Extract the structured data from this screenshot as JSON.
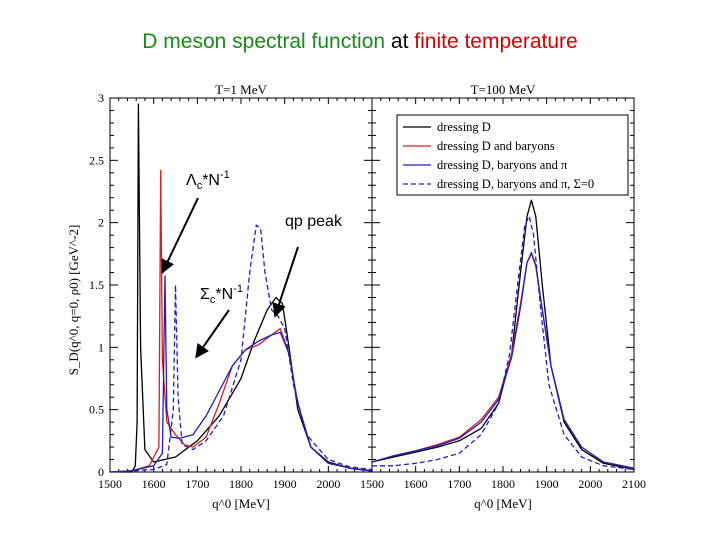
{
  "title": {
    "part1": "D meson spectral function",
    "part2": " at ",
    "part3": "finite temperature",
    "color1": "#1a8a1a",
    "color3": "#d40000"
  },
  "chart_data": {
    "type": "line",
    "ylabel": "S_D(q^0, q=0, ρ0) [GeV^-2]",
    "xlabel": "q^0 [MeV]",
    "ylim": [
      0,
      3
    ],
    "yticks": [
      "0",
      "0.5",
      "1",
      "1.5",
      "2",
      "2.5",
      "3"
    ],
    "yticks_values": [
      0,
      0.5,
      1,
      1.5,
      2,
      2.5,
      3
    ],
    "legend_position": "top-right",
    "legend": [
      {
        "label": "dressing D",
        "color": "#000000",
        "dash": false
      },
      {
        "label": "dressing D and baryons",
        "color": "#d42020",
        "dash": false
      },
      {
        "label": "dressing D, baryons and π",
        "color": "#2020c0",
        "dash": false
      },
      {
        "label": "dressing D, baryons and π, Σ=0",
        "color": "#2020c0",
        "dash": true
      }
    ],
    "panels": [
      {
        "title": "T=1 MeV",
        "xlim": [
          1500,
          2100
        ],
        "xticks": [
          "1500",
          "1600",
          "1700",
          "1800",
          "1900",
          "2000"
        ],
        "xticks_values": [
          1500,
          1600,
          1700,
          1800,
          1900,
          2000
        ],
        "series": [
          {
            "name": "dressing D",
            "color": "#000000",
            "dash": false,
            "x": [
              1500,
              1550,
              1558,
              1562,
              1565,
              1570,
              1580,
              1600,
              1650,
              1700,
              1750,
              1800,
              1830,
              1860,
              1880,
              1895,
              1910,
              1930,
              1960,
              2000,
              2050,
              2100
            ],
            "y": [
              0,
              0,
              0.05,
              0.4,
              2.95,
              1.0,
              0.18,
              0.08,
              0.12,
              0.25,
              0.45,
              0.75,
              1.05,
              1.3,
              1.4,
              1.35,
              1.0,
              0.5,
              0.2,
              0.08,
              0.03,
              0.01
            ]
          },
          {
            "name": "dressing D and baryons",
            "color": "#d42020",
            "dash": false,
            "x": [
              1500,
              1550,
              1590,
              1612,
              1616,
              1620,
              1630,
              1650,
              1670,
              1690,
              1720,
              1750,
              1780,
              1810,
              1840,
              1870,
              1890,
              1910,
              1930,
              1960,
              2000,
              2050,
              2100
            ],
            "y": [
              0,
              0.01,
              0.05,
              0.2,
              2.42,
              0.9,
              0.4,
              0.3,
              0.22,
              0.2,
              0.28,
              0.55,
              0.85,
              0.98,
              1.02,
              1.1,
              1.15,
              0.95,
              0.55,
              0.2,
              0.07,
              0.03,
              0.01
            ]
          },
          {
            "name": "dressing D, baryons and π",
            "color": "#2020c0",
            "dash": false,
            "x": [
              1500,
              1550,
              1600,
              1620,
              1626,
              1630,
              1640,
              1660,
              1690,
              1720,
              1750,
              1780,
              1810,
              1840,
              1870,
              1890,
              1910,
              1930,
              1960,
              2000,
              2050,
              2100
            ],
            "y": [
              0,
              0.01,
              0.05,
              0.15,
              1.57,
              0.5,
              0.28,
              0.27,
              0.3,
              0.45,
              0.65,
              0.85,
              0.98,
              1.05,
              1.1,
              1.12,
              0.95,
              0.55,
              0.2,
              0.07,
              0.03,
              0.01
            ]
          },
          {
            "name": "dressing D, baryons and π, Σ=0",
            "color": "#2020c0",
            "dash": true,
            "x": [
              1500,
              1550,
              1600,
              1630,
              1645,
              1650,
              1656,
              1665,
              1690,
              1720,
              1760,
              1800,
              1820,
              1835,
              1845,
              1855,
              1870,
              1885,
              1900,
              1920,
              1950,
              2000,
              2050,
              2100
            ],
            "y": [
              0,
              0.01,
              0.02,
              0.06,
              0.5,
              1.5,
              0.6,
              0.22,
              0.18,
              0.25,
              0.45,
              0.9,
              1.6,
              1.98,
              1.95,
              1.6,
              1.3,
              1.25,
              1.15,
              0.7,
              0.3,
              0.1,
              0.04,
              0.02
            ]
          }
        ]
      },
      {
        "title": "T=100 MeV",
        "xlim": [
          1500,
          2100
        ],
        "xticks": [
          "1500",
          "1600",
          "1700",
          "1800",
          "1900",
          "2000",
          "2100"
        ],
        "xticks_values": [
          1500,
          1600,
          1700,
          1800,
          1900,
          2000,
          2100
        ],
        "series": [
          {
            "name": "dressing D",
            "color": "#000000",
            "dash": false,
            "x": [
              1500,
              1550,
              1600,
              1650,
              1700,
              1750,
              1790,
              1820,
              1840,
              1855,
              1865,
              1875,
              1890,
              1910,
              1940,
              1980,
              2030,
              2100
            ],
            "y": [
              0.08,
              0.12,
              0.16,
              0.2,
              0.25,
              0.35,
              0.55,
              0.95,
              1.6,
              2.05,
              2.18,
              2.05,
              1.5,
              0.85,
              0.4,
              0.18,
              0.07,
              0.02
            ]
          },
          {
            "name": "dressing D and baryons",
            "color": "#d42020",
            "dash": false,
            "x": [
              1500,
              1550,
              1600,
              1650,
              1700,
              1750,
              1790,
              1820,
              1840,
              1855,
              1865,
              1875,
              1890,
              1910,
              1940,
              1980,
              2030,
              2100
            ],
            "y": [
              0.08,
              0.13,
              0.17,
              0.22,
              0.28,
              0.42,
              0.6,
              0.95,
              1.35,
              1.68,
              1.75,
              1.65,
              1.3,
              0.85,
              0.42,
              0.2,
              0.08,
              0.03
            ]
          },
          {
            "name": "dressing D, baryons and π",
            "color": "#2020c0",
            "dash": false,
            "x": [
              1500,
              1550,
              1600,
              1650,
              1700,
              1750,
              1790,
              1820,
              1840,
              1855,
              1865,
              1875,
              1890,
              1910,
              1940,
              1980,
              2030,
              2100
            ],
            "y": [
              0.08,
              0.13,
              0.17,
              0.21,
              0.27,
              0.4,
              0.58,
              0.92,
              1.32,
              1.68,
              1.76,
              1.66,
              1.3,
              0.85,
              0.42,
              0.2,
              0.08,
              0.03
            ]
          },
          {
            "name": "dressing D, baryons and π, Σ=0",
            "color": "#2020c0",
            "dash": true,
            "x": [
              1500,
              1550,
              1600,
              1650,
              1700,
              1750,
              1790,
              1815,
              1835,
              1850,
              1860,
              1870,
              1885,
              1905,
              1940,
              1980,
              2030,
              2100
            ],
            "y": [
              0.05,
              0.05,
              0.07,
              0.1,
              0.15,
              0.3,
              0.55,
              0.95,
              1.55,
              1.98,
              2.05,
              1.9,
              1.35,
              0.7,
              0.3,
              0.12,
              0.05,
              0.02
            ]
          }
        ]
      }
    ],
    "annotations": [
      {
        "id": "lambda",
        "label": "Λc*N-1",
        "base": "Λ",
        "sub": "c",
        "mid": "*N",
        "sup": "-1",
        "panel": 0,
        "target_x": 1620,
        "target_y": 1.6
      },
      {
        "id": "qp",
        "label": "qp peak",
        "panel": 0,
        "target_x": 1878,
        "target_y": 1.25
      },
      {
        "id": "sigma",
        "label": "Σc*N-1",
        "base": "Σ",
        "sub": "c",
        "mid": "*N",
        "sup": "-1",
        "panel": 0,
        "target_x": 1697,
        "target_y": 0.92
      }
    ]
  }
}
